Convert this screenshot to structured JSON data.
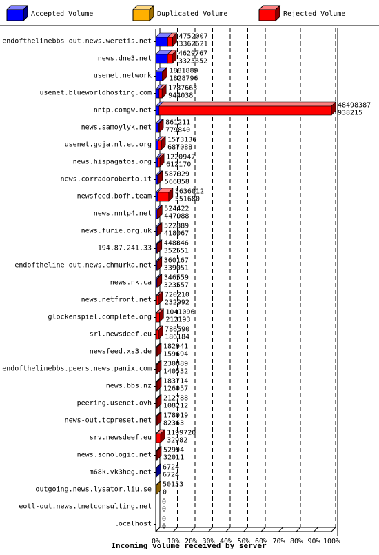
{
  "chart_data": {
    "type": "bar",
    "orientation": "horizontal",
    "stacked": true,
    "xlabel": "Incoming volume received by server",
    "xlim": [
      0,
      100
    ],
    "x_ticks": [
      "0%",
      "10%",
      "20%",
      "30%",
      "40%",
      "50%",
      "60%",
      "70%",
      "80%",
      "90%",
      "100%"
    ],
    "legend_position": "top",
    "series": [
      {
        "name": "Accepted Volume",
        "color": "#0000ff"
      },
      {
        "name": "Duplicated Volume",
        "color": "#ffb000"
      },
      {
        "name": "Rejected Volume",
        "color": "#ff0000"
      }
    ],
    "categories": [
      {
        "server": "endofthelinebbs-out.news.weretis.net",
        "total": "4752007",
        "accepted": "3362621",
        "accepted_pct": 6.8,
        "duplicated_pct": 0,
        "rejected_pct": 2.8
      },
      {
        "server": "news.dne3.net",
        "total": "4629767",
        "accepted": "3325652",
        "accepted_pct": 6.7,
        "duplicated_pct": 0,
        "rejected_pct": 2.7
      },
      {
        "server": "usenet.network",
        "total": "1881889",
        "accepted": "1828796",
        "accepted_pct": 3.7,
        "duplicated_pct": 0,
        "rejected_pct": 0.1
      },
      {
        "server": "usenet.blueworldhosting.com",
        "total": "1787663",
        "accepted": "944038",
        "accepted_pct": 1.9,
        "duplicated_pct": 0,
        "rejected_pct": 1.7
      },
      {
        "server": "nntp.comgw.net",
        "total": "48498387",
        "accepted": "938215",
        "accepted_pct": 1.9,
        "duplicated_pct": 0,
        "rejected_pct": 98.1
      },
      {
        "server": "news.samoylyk.net",
        "total": "861211",
        "accepted": "779840",
        "accepted_pct": 1.6,
        "duplicated_pct": 0,
        "rejected_pct": 0.2
      },
      {
        "server": "usenet.goja.nl.eu.org",
        "total": "1573136",
        "accepted": "687088",
        "accepted_pct": 1.4,
        "duplicated_pct": 0,
        "rejected_pct": 1.8
      },
      {
        "server": "news.hispagatos.org",
        "total": "1220947",
        "accepted": "612170",
        "accepted_pct": 1.2,
        "duplicated_pct": 0,
        "rejected_pct": 1.2
      },
      {
        "server": "news.corradoroberto.it",
        "total": "587029",
        "accepted": "566858",
        "accepted_pct": 1.1,
        "duplicated_pct": 0,
        "rejected_pct": 0.1
      },
      {
        "server": "newsfeed.bofh.team",
        "total": "3636012",
        "accepted": "551680",
        "accepted_pct": 1.1,
        "duplicated_pct": 0,
        "rejected_pct": 6.3
      },
      {
        "server": "news.nntp4.net",
        "total": "524422",
        "accepted": "447988",
        "accepted_pct": 0.9,
        "duplicated_pct": 0,
        "rejected_pct": 0.2
      },
      {
        "server": "news.furie.org.uk",
        "total": "522889",
        "accepted": "418067",
        "accepted_pct": 0.8,
        "duplicated_pct": 0,
        "rejected_pct": 0.2
      },
      {
        "server": "194.87.241.33",
        "total": "448846",
        "accepted": "352551",
        "accepted_pct": 0.7,
        "duplicated_pct": 0,
        "rejected_pct": 0.2
      },
      {
        "server": "endoftheline-out.news.chmurka.net",
        "total": "360167",
        "accepted": "339051",
        "accepted_pct": 0.7,
        "duplicated_pct": 0,
        "rejected_pct": 0.05
      },
      {
        "server": "news.nk.ca",
        "total": "346559",
        "accepted": "323557",
        "accepted_pct": 0.7,
        "duplicated_pct": 0,
        "rejected_pct": 0.05
      },
      {
        "server": "news.netfront.net",
        "total": "720210",
        "accepted": "232992",
        "accepted_pct": 0.5,
        "duplicated_pct": 0,
        "rejected_pct": 1.0
      },
      {
        "server": "glockenspiel.complete.org",
        "total": "1041096",
        "accepted": "212193",
        "accepted_pct": 0.4,
        "duplicated_pct": 0,
        "rejected_pct": 1.7
      },
      {
        "server": "srl.newsdeef.eu",
        "total": "786590",
        "accepted": "186184",
        "accepted_pct": 0.4,
        "duplicated_pct": 0,
        "rejected_pct": 1.2
      },
      {
        "server": "newsfeed.xs3.de",
        "total": "182941",
        "accepted": "159694",
        "accepted_pct": 0.3,
        "duplicated_pct": 0,
        "rejected_pct": 0.05
      },
      {
        "server": "endofthelinebbs.peers.news.panix.com",
        "total": "230889",
        "accepted": "140532",
        "accepted_pct": 0.3,
        "duplicated_pct": 0,
        "rejected_pct": 0.2
      },
      {
        "server": "news.bbs.nz",
        "total": "183714",
        "accepted": "126057",
        "accepted_pct": 0.3,
        "duplicated_pct": 0,
        "rejected_pct": 0.1
      },
      {
        "server": "peering.usenet.ovh",
        "total": "212788",
        "accepted": "108212",
        "accepted_pct": 0.2,
        "duplicated_pct": 0,
        "rejected_pct": 0.2
      },
      {
        "server": "news-out.tcpreset.net",
        "total": "178019",
        "accepted": "82363",
        "accepted_pct": 0.2,
        "duplicated_pct": 0,
        "rejected_pct": 0.2
      },
      {
        "server": "srv.newsdeef.eu",
        "total": "1199720",
        "accepted": "32982",
        "accepted_pct": 0.1,
        "duplicated_pct": 0,
        "rejected_pct": 2.4
      },
      {
        "server": "news.sonologic.net",
        "total": "52994",
        "accepted": "32011",
        "accepted_pct": 0.1,
        "duplicated_pct": 0,
        "rejected_pct": 0.05
      },
      {
        "server": "m68k.vk3heg.net",
        "total": "6724",
        "accepted": "6724",
        "accepted_pct": 0.01,
        "duplicated_pct": 0,
        "rejected_pct": 0
      },
      {
        "server": "outgoing.news.lysator.liu.se",
        "total": "50153",
        "accepted": "0",
        "accepted_pct": 0,
        "duplicated_pct": 0.1,
        "rejected_pct": 0
      },
      {
        "server": "eotl-out.news.tnetconsulting.net",
        "total": "0",
        "accepted": "0",
        "accepted_pct": 0,
        "duplicated_pct": 0,
        "rejected_pct": 0
      },
      {
        "server": "localhost",
        "total": "0",
        "accepted": "0",
        "accepted_pct": 0,
        "duplicated_pct": 0,
        "rejected_pct": 0
      }
    ]
  }
}
